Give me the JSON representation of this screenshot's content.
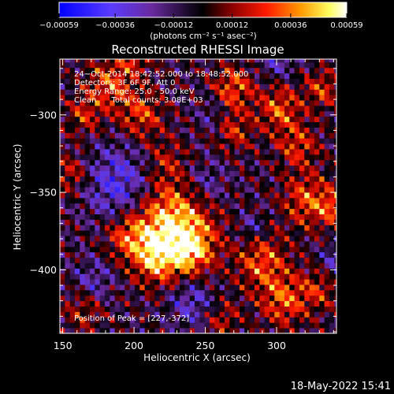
{
  "chart_data": {
    "type": "heatmap",
    "title": "Reconstructed RHESSI Image",
    "xlabel": "Heliocentric X (arcsec)",
    "ylabel": "Heliocentric Y (arcsec)",
    "xlim": [
      148,
      342
    ],
    "ylim": [
      -441,
      -264
    ],
    "x_ticks": [
      150,
      200,
      250,
      300
    ],
    "y_ticks": [
      -300,
      -350,
      -400
    ],
    "colorbar": {
      "min": -0.00059,
      "max": 0.00059,
      "tick_values": [
        -0.00059,
        -0.00036,
        -0.00012,
        0.00012,
        0.00036,
        0.00059
      ],
      "tick_labels": [
        "-0.00059",
        "-0.00036",
        "-0.00012",
        "0.00012",
        "0.00036",
        "0.00059"
      ],
      "units_label": "(photons cm⁻² s⁻¹ asec⁻²)",
      "colormap_stops": [
        "#0000ff",
        "#5a3cff",
        "#6a2aa0",
        "#1a0a2a",
        "#000000",
        "#7a0000",
        "#ff1a00",
        "#ff9a00",
        "#ffff60",
        "#ffffff"
      ]
    },
    "info_lines": [
      "24-Oct-2014 18:42:52.000 to 18:48:52.000",
      "Detectors: 3F 6F 9F, Att 0",
      "Energy Range: 25.0 - 50.0 keV",
      "Clean      Total counts: 3.08E+03"
    ],
    "peak_label": "Position of Peak = [227,-372]",
    "peak_position": [
      227,
      -372
    ],
    "grid": false
  },
  "footer": {
    "timestamp": "18-May-2022 15:41"
  }
}
